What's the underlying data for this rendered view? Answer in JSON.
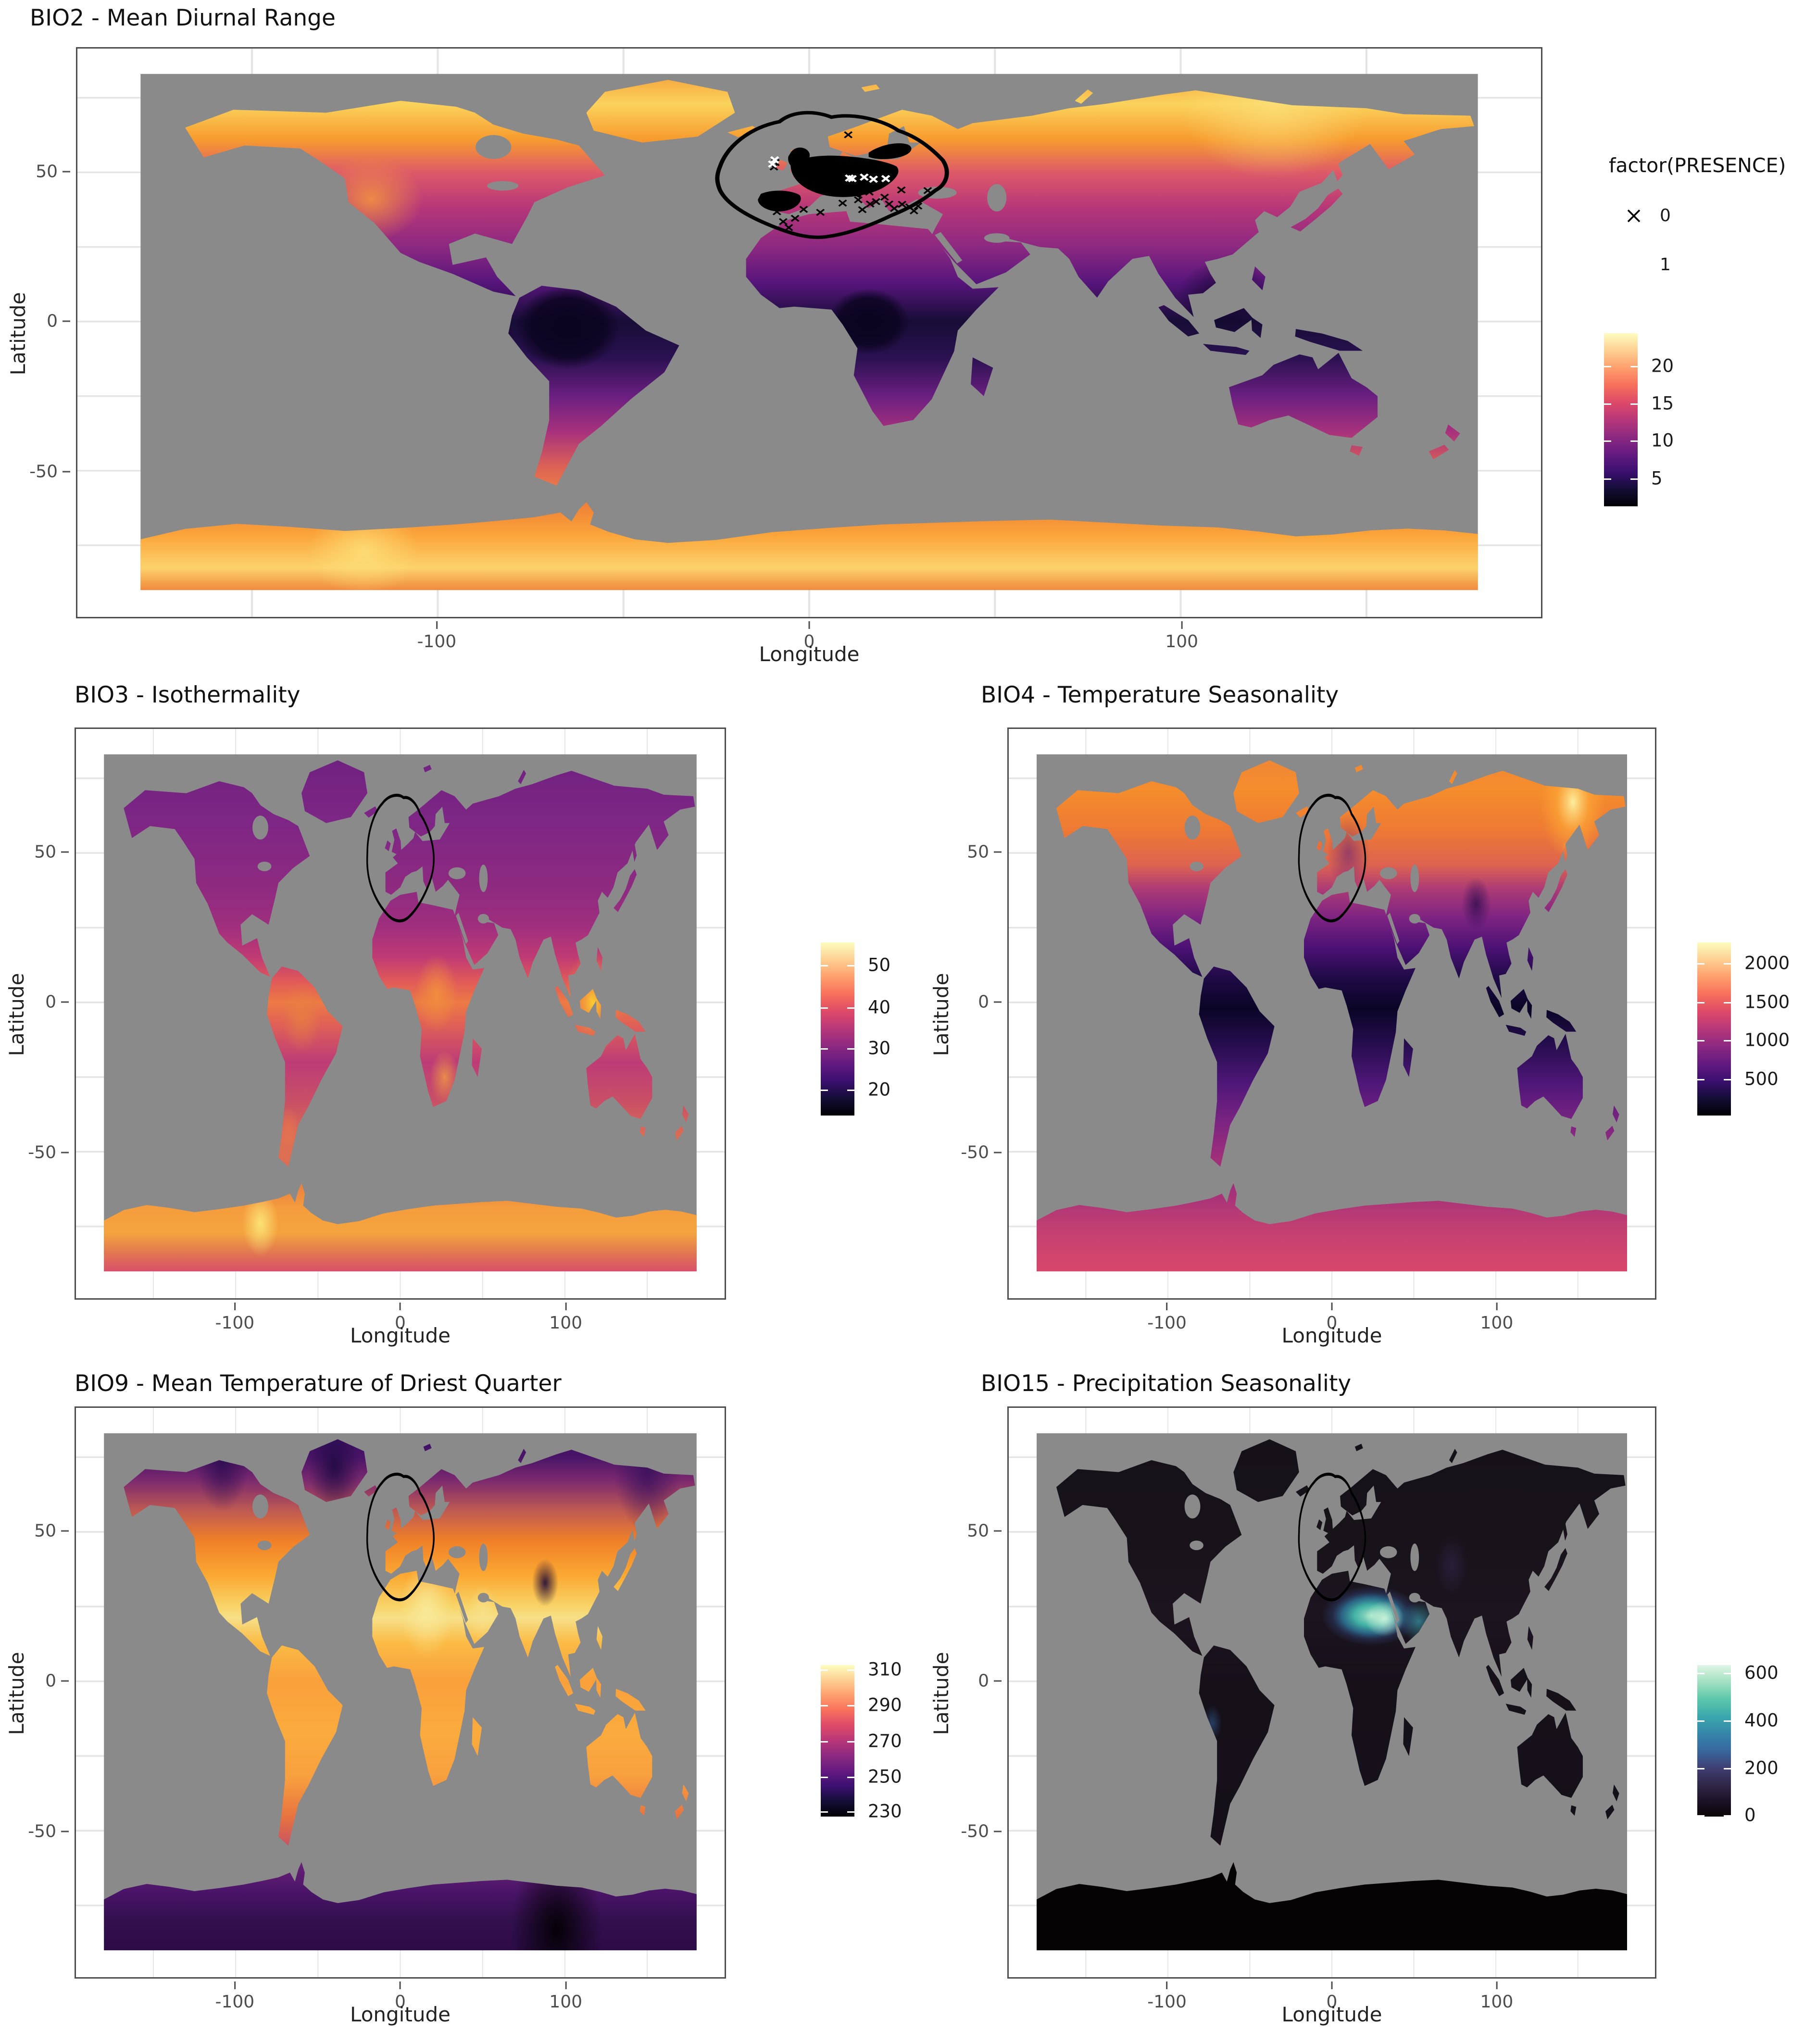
{
  "figure": {
    "background": "#ffffff",
    "ocean_color": "#8a8a8a",
    "gridline_color": "#e4e4e4"
  },
  "colors": {
    "ocean": "#8a8a8a",
    "magma_palette": [
      "#000004",
      "#140e36",
      "#3b0f70",
      "#641a80",
      "#8c2981",
      "#b73779",
      "#de4968",
      "#f7705c",
      "#fe9f6d",
      "#fecf92",
      "#fcfdbf"
    ],
    "mako_palette": [
      "#0b0405",
      "#1c1226",
      "#2e2545",
      "#3f3f72",
      "#38699f",
      "#3583a9",
      "#3aa7ad",
      "#5ec9ab",
      "#aae2c4",
      "#def5e5"
    ],
    "presence_absence_marker": "#000000",
    "presence_marker": "#ffffff",
    "hull_outline": "#000000"
  },
  "legend_presence": {
    "title": "factor(PRESENCE)",
    "items": [
      {
        "symbol": "black-cross",
        "label": "0"
      },
      {
        "symbol": "white-cross",
        "label": "1"
      }
    ]
  },
  "panels": [
    {
      "id": "bio2",
      "title": "BIO2 - Mean Diurnal Range",
      "xlabel": "Longitude",
      "ylabel": "Latitude",
      "x_ticks": [
        {
          "label": "-100",
          "pct": 24.6
        },
        {
          "label": "0",
          "pct": 50
        },
        {
          "label": "100",
          "pct": 75.4
        }
      ],
      "y_ticks": [
        {
          "label": "50",
          "pct": 21.8
        },
        {
          "label": "0",
          "pct": 48.0
        },
        {
          "label": "-50",
          "pct": 74.3
        }
      ],
      "colorbar": {
        "palette": "magma",
        "ticks": [
          {
            "label": "20",
            "pct": 19
          },
          {
            "label": "15",
            "pct": 40.5
          },
          {
            "label": "10",
            "pct": 62
          },
          {
            "label": "5",
            "pct": 84
          }
        ]
      }
    },
    {
      "id": "bio3",
      "title": "BIO3 - Isothermality",
      "xlabel": "Longitude",
      "ylabel": "Latitude",
      "x_ticks": [
        {
          "label": "-100",
          "pct": 24.6
        },
        {
          "label": "0",
          "pct": 50
        },
        {
          "label": "100",
          "pct": 75.4
        }
      ],
      "y_ticks": [
        {
          "label": "50",
          "pct": 21.8
        },
        {
          "label": "0",
          "pct": 48.0
        },
        {
          "label": "-50",
          "pct": 74.3
        }
      ],
      "colorbar": {
        "palette": "magma",
        "ticks": [
          {
            "label": "50",
            "pct": 13
          },
          {
            "label": "40",
            "pct": 37.5
          },
          {
            "label": "30",
            "pct": 61
          },
          {
            "label": "20",
            "pct": 85
          }
        ]
      }
    },
    {
      "id": "bio4",
      "title": "BIO4 - Temperature Seasonality",
      "xlabel": "Longitude",
      "ylabel": "Latitude",
      "x_ticks": [
        {
          "label": "-100",
          "pct": 24.6
        },
        {
          "label": "0",
          "pct": 50
        },
        {
          "label": "100",
          "pct": 75.4
        }
      ],
      "y_ticks": [
        {
          "label": "50",
          "pct": 21.8
        },
        {
          "label": "0",
          "pct": 48.0
        },
        {
          "label": "-50",
          "pct": 74.3
        }
      ],
      "colorbar": {
        "palette": "magma",
        "ticks": [
          {
            "label": "2000",
            "pct": 12
          },
          {
            "label": "1500",
            "pct": 34.5
          },
          {
            "label": "1000",
            "pct": 56.5
          },
          {
            "label": "500",
            "pct": 79
          }
        ]
      }
    },
    {
      "id": "bio9",
      "title": "BIO9 - Mean Temperature of Driest Quarter",
      "xlabel": "Longitude",
      "ylabel": "Latitude",
      "x_ticks": [
        {
          "label": "-100",
          "pct": 24.6
        },
        {
          "label": "0",
          "pct": 50
        },
        {
          "label": "100",
          "pct": 75.4
        }
      ],
      "y_ticks": [
        {
          "label": "50",
          "pct": 21.8
        },
        {
          "label": "0",
          "pct": 48.0
        },
        {
          "label": "-50",
          "pct": 74.3
        }
      ],
      "colorbar": {
        "palette": "magma",
        "ticks": [
          {
            "label": "310",
            "pct": 3
          },
          {
            "label": "290",
            "pct": 26.5
          },
          {
            "label": "270",
            "pct": 50
          },
          {
            "label": "250",
            "pct": 73.5
          },
          {
            "label": "230",
            "pct": 96.5
          }
        ]
      }
    },
    {
      "id": "bio15",
      "title": "BIO15 - Precipitation Seasonality",
      "xlabel": "Longitude",
      "ylabel": "Latitude",
      "x_ticks": [
        {
          "label": "-100",
          "pct": 24.6
        },
        {
          "label": "0",
          "pct": 50
        },
        {
          "label": "100",
          "pct": 75.4
        }
      ],
      "y_ticks": [
        {
          "label": "50",
          "pct": 21.8
        },
        {
          "label": "0",
          "pct": 48.0
        },
        {
          "label": "-50",
          "pct": 74.3
        }
      ],
      "colorbar": {
        "palette": "mako",
        "ticks": [
          {
            "label": "600",
            "pct": 5
          },
          {
            "label": "400",
            "pct": 36.5
          },
          {
            "label": "200",
            "pct": 68
          },
          {
            "label": "0",
            "pct": 99
          }
        ]
      }
    }
  ],
  "chart_data": [
    {
      "type": "heatmap",
      "subtype": "world-raster-map",
      "title": "BIO2 - Mean Diurnal Range",
      "xlabel": "Longitude",
      "ylabel": "Latitude",
      "x_ticks": [
        -100,
        0,
        100
      ],
      "y_ticks": [
        50,
        0,
        -50
      ],
      "xlim": [
        -180,
        180
      ],
      "ylim": [
        -90,
        83
      ],
      "grid": "on, light gray every 50 lon / 25 lat",
      "palette": "viridis-magma",
      "colorbar_ticks": [
        20,
        15,
        10,
        5
      ],
      "value_range_est": [
        1,
        24
      ],
      "legend_position": "right",
      "pattern": "High values (orange/yellow) across arctic Canada, Alaska, Siberia, Greenland, western USA and Antarctica; low values (dark purple/black) in Amazon, Congo basin, SE Asia and equatorial belt; mid purple over Sahara, Australia, mid-latitudes; ocean gray (NA).",
      "overlays": {
        "presence_hull": "black outline blob enclosing western Europe + NW Africa (lon -25..37, lat 28..68)",
        "absence_points": "dense cluster of black x marks over UK, France, Spain, Germany, Alps, Poland, Baltic, S Scandinavia; scattered singles around Mediterranean, Morocco, Greece, Turkey",
        "presence_points": "about 7 white x marks: 2 over Ireland, 5 across Austria/Hungary region (lat ~48)"
      }
    },
    {
      "type": "heatmap",
      "subtype": "world-raster-map",
      "title": "BIO3 - Isothermality",
      "xlabel": "Longitude",
      "ylabel": "Latitude",
      "x_ticks": [
        -100,
        0,
        100
      ],
      "y_ticks": [
        50,
        0,
        -50
      ],
      "xlim": [
        -180,
        180
      ],
      "ylim": [
        -90,
        83
      ],
      "palette": "viridis-magma",
      "colorbar_ticks": [
        50,
        40,
        30,
        20
      ],
      "value_range_est": [
        10,
        57
      ],
      "pattern": "Purple over all high/mid latitudes; bright orange/yellow in tropics (central Africa, Indonesia/New Guinea brightest, Amazon fringes, northern Australia); Antarctica orange/pink with pale yellow patch in West Antarctica.",
      "overlays": {
        "presence_hull": "tall black outline oval over Europe (lon -22..27, lat 27..69)"
      }
    },
    {
      "type": "heatmap",
      "subtype": "world-raster-map",
      "title": "BIO4 - Temperature Seasonality",
      "xlabel": "Longitude",
      "ylabel": "Latitude",
      "x_ticks": [
        -100,
        0,
        100
      ],
      "y_ticks": [
        50,
        0,
        -50
      ],
      "xlim": [
        -180,
        180
      ],
      "ylim": [
        -90,
        83
      ],
      "palette": "viridis-magma",
      "colorbar_ticks": [
        2000,
        1500,
        1000,
        500
      ],
      "value_range_est": [
        30,
        2300
      ],
      "pattern": "Bright yellow hotspot NE Siberia; orange across boreal North America and Russia; purple mid-latitudes; black tropics (South America, Africa, SE Asia); Australia purple; Antarctica magenta/pink.",
      "overlays": {
        "presence_hull": "tall black outline oval over Europe"
      }
    },
    {
      "type": "heatmap",
      "subtype": "world-raster-map",
      "title": "BIO9 - Mean Temperature of Driest Quarter",
      "xlabel": "Longitude",
      "ylabel": "Latitude",
      "x_ticks": [
        -100,
        0,
        100
      ],
      "y_ticks": [
        50,
        0,
        -50
      ],
      "xlim": [
        -180,
        180
      ],
      "ylim": [
        -90,
        83
      ],
      "palette": "viridis-magma",
      "colorbar_ticks": [
        310,
        290,
        270,
        250,
        230
      ],
      "value_range_est": [
        227,
        312
      ],
      "pattern": "Most continents orange/yellow; Sahara and Arabia pale cream-yellow; dark purple over Greenland, arctic islands, NE Siberia and Tibet; Antarctica dark purple fading to black center.",
      "overlays": {
        "presence_hull": "tall black outline oval over Europe"
      }
    },
    {
      "type": "heatmap",
      "subtype": "world-raster-map",
      "title": "BIO15 - Precipitation Seasonality",
      "xlabel": "Longitude",
      "ylabel": "Latitude",
      "x_ticks": [
        -100,
        0,
        100
      ],
      "y_ticks": [
        50,
        0,
        -50
      ],
      "xlim": [
        -180,
        180
      ],
      "ylim": [
        -90,
        83
      ],
      "palette": "mako",
      "colorbar_ticks": [
        600,
        400,
        200,
        0
      ],
      "value_range_est": [
        0,
        620
      ],
      "pattern": "Nearly all land near-black; bright teal/cyan band across Sahel-Sahara and southern Arabia (brightest near Egypt/Sudan); faint blue along Peru/Chile coast; Antarctica solid black.",
      "overlays": {
        "presence_hull": "tall black outline oval over Europe"
      }
    }
  ]
}
